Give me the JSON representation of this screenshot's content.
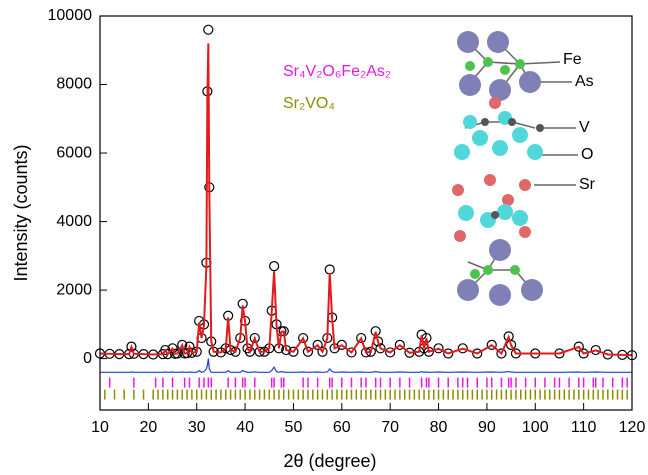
{
  "chart_data": {
    "type": "rietveld",
    "x_label": "2θ (degree)",
    "y_label": "Intensity (counts)",
    "xlim": [
      10,
      120
    ],
    "ylim": [
      -1500,
      10000
    ],
    "xticks": [
      10,
      20,
      30,
      40,
      50,
      60,
      70,
      80,
      90,
      100,
      110,
      120
    ],
    "yticks": [
      0,
      2000,
      4000,
      6000,
      8000,
      10000
    ],
    "x": [
      10,
      12,
      14,
      16,
      16.5,
      17,
      19,
      21,
      23,
      23.5,
      24,
      25,
      25.5,
      26,
      27,
      27.5,
      28,
      28.5,
      29,
      30,
      30.5,
      31,
      31.5,
      32,
      32.2,
      32.4,
      32.6,
      33,
      33.5,
      35,
      36,
      36.5,
      37,
      38,
      39,
      39.5,
      40,
      40.5,
      41,
      42,
      43,
      44,
      45,
      45.5,
      46,
      46.5,
      47,
      47.5,
      48,
      48.5,
      50,
      52,
      53,
      55,
      56,
      57,
      57.5,
      58,
      58.5,
      60,
      62,
      64,
      65,
      66,
      67,
      67.5,
      68,
      70,
      72,
      74,
      76,
      76.5,
      77,
      77.5,
      78,
      80,
      82,
      85,
      88,
      91,
      93,
      94.5,
      95,
      96,
      100,
      105,
      109,
      110,
      112.5,
      115,
      118,
      120
    ],
    "series": [
      {
        "color": "#000000",
        "marker": "circle",
        "values": [
          150,
          140,
          130,
          130,
          350,
          140,
          130,
          120,
          130,
          250,
          130,
          300,
          140,
          150,
          400,
          150,
          160,
          350,
          170,
          200,
          1100,
          600,
          1000,
          2800,
          7800,
          9600,
          5000,
          500,
          200,
          180,
          300,
          1250,
          250,
          200,
          600,
          1600,
          1100,
          300,
          200,
          600,
          200,
          200,
          300,
          1400,
          2700,
          1000,
          300,
          800,
          800,
          250,
          200,
          600,
          200,
          400,
          200,
          600,
          2600,
          1200,
          300,
          400,
          180,
          600,
          180,
          200,
          800,
          500,
          300,
          180,
          400,
          170,
          200,
          700,
          300,
          600,
          200,
          300,
          150,
          300,
          150,
          400,
          150,
          650,
          400,
          150,
          150,
          150,
          350,
          150,
          250,
          120,
          110,
          100
        ]
      },
      {
        "color": "#e41a1c",
        "marker": "line",
        "values": [
          150,
          140,
          130,
          130,
          340,
          140,
          130,
          120,
          130,
          240,
          130,
          290,
          140,
          150,
          390,
          150,
          160,
          340,
          170,
          200,
          1050,
          600,
          980,
          2700,
          7600,
          9200,
          4900,
          500,
          200,
          180,
          300,
          1200,
          250,
          200,
          600,
          1550,
          1080,
          300,
          200,
          590,
          200,
          200,
          300,
          1350,
          2550,
          980,
          300,
          780,
          790,
          250,
          200,
          590,
          200,
          390,
          200,
          590,
          2500,
          1180,
          300,
          390,
          180,
          590,
          180,
          200,
          780,
          490,
          300,
          180,
          390,
          170,
          200,
          680,
          300,
          590,
          200,
          290,
          150,
          290,
          150,
          390,
          150,
          630,
          390,
          150,
          150,
          150,
          340,
          150,
          240,
          120,
          110,
          100
        ]
      },
      {
        "color": "#1f3fe0",
        "marker": "line",
        "values": [
          -400,
          -400,
          -400,
          -400,
          -390,
          -400,
          -400,
          -400,
          -400,
          -390,
          -400,
          -390,
          -400,
          -400,
          -390,
          -400,
          -400,
          -390,
          -400,
          -400,
          -350,
          -400,
          -380,
          -300,
          -200,
          0,
          -300,
          -400,
          -400,
          -400,
          -400,
          -350,
          -400,
          -400,
          -400,
          -350,
          -380,
          -400,
          -400,
          -390,
          -400,
          -400,
          -400,
          -350,
          -250,
          -380,
          -400,
          -380,
          -390,
          -400,
          -400,
          -390,
          -400,
          -390,
          -400,
          -390,
          -300,
          -380,
          -400,
          -390,
          -400,
          -390,
          -400,
          -400,
          -380,
          -390,
          -400,
          -400,
          -390,
          -400,
          -400,
          -380,
          -400,
          -390,
          -400,
          -390,
          -400,
          -390,
          -400,
          -390,
          -400,
          -380,
          -390,
          -400,
          -400,
          -400,
          -390,
          -400,
          -390,
          -400,
          -400,
          -400
        ]
      }
    ],
    "reflections": [
      {
        "name": "Sr₄V₂O₆Fe₂As₂",
        "color": "#e619e6",
        "y": -700,
        "x": [
          12,
          17,
          21.5,
          23,
          25,
          27.5,
          28.5,
          30.5,
          31.5,
          32.4,
          33,
          36.5,
          38,
          39.5,
          40,
          42,
          45.5,
          46,
          47.5,
          48,
          52,
          53,
          55,
          57.5,
          58,
          60,
          62,
          64,
          65,
          67,
          68,
          70,
          72,
          74,
          76.5,
          77.5,
          78,
          80,
          82,
          84,
          85,
          86,
          88,
          90,
          91,
          93,
          94.5,
          95,
          96,
          98,
          100,
          102,
          104,
          105,
          107,
          109,
          110,
          112,
          112.5,
          114,
          116,
          118,
          119
        ]
      },
      {
        "name": "Sr₂VO₄",
        "color": "#8c8c00",
        "y": -1050,
        "x": [
          11,
          13,
          15,
          17,
          19,
          21,
          22,
          23,
          24,
          25,
          26,
          27,
          28,
          29,
          30,
          31,
          32,
          33,
          34,
          35,
          36,
          37,
          38,
          39,
          40,
          41,
          42,
          43,
          44,
          45,
          46,
          47,
          48,
          49,
          50,
          51,
          52,
          53,
          54,
          55,
          56,
          57,
          58,
          59,
          60,
          61,
          62,
          63,
          64,
          65,
          66,
          67,
          68,
          69,
          70,
          71,
          72,
          73,
          74,
          75,
          76,
          77,
          78,
          79,
          80,
          81,
          82,
          83,
          84,
          85,
          86,
          87,
          88,
          89,
          90,
          91,
          92,
          93,
          94,
          95,
          96,
          97,
          98,
          99,
          100,
          101,
          102,
          103,
          104,
          105,
          106,
          107,
          108,
          109,
          110,
          111,
          112,
          113,
          114,
          115,
          116,
          117,
          118,
          119
        ]
      }
    ],
    "annotations": [
      "Fe",
      "As",
      "V",
      "O",
      "Sr"
    ]
  }
}
